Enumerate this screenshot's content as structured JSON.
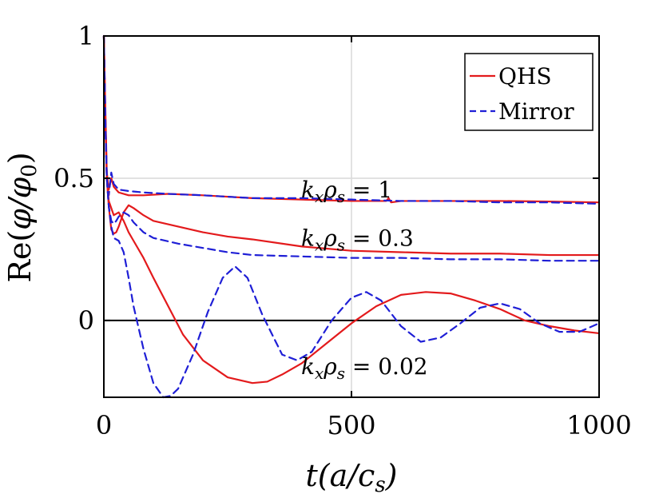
{
  "chart_data": {
    "type": "line",
    "title": "",
    "xlabel": "t(a/c_s)",
    "ylabel": "Re(φ/φ_0)",
    "xlim": [
      0,
      1000
    ],
    "ylim": [
      -0.27,
      1
    ],
    "xticks": [
      0,
      500,
      1000
    ],
    "xtick_labels": [
      "0",
      "500",
      "1000"
    ],
    "yticks": [
      0,
      0.5,
      1
    ],
    "ytick_labels": [
      "0",
      "0.5",
      "1"
    ],
    "grid": true,
    "zero_line": true,
    "legend": {
      "placement": "top-right",
      "entries": [
        {
          "label": "QHS",
          "color": "#e31a1c",
          "style": "solid"
        },
        {
          "label": "Mirror",
          "color": "#1f1fd6",
          "style": "dashed"
        }
      ]
    },
    "annotations": [
      {
        "text": "k_x ρ_s = 1",
        "x": 450,
        "y": 0.46
      },
      {
        "text": "k_x ρ_s = 0.3",
        "x": 450,
        "y": 0.29
      },
      {
        "text": "k_x ρ_s = 0.02",
        "x": 450,
        "y": -0.16
      }
    ],
    "series": [
      {
        "name": "QHS",
        "group": "k_x ρ_s = 1",
        "color": "#e31a1c",
        "style": "solid",
        "x": [
          0,
          3,
          6,
          10,
          15,
          20,
          30,
          50,
          80,
          130,
          200,
          300,
          400,
          500,
          570,
          575,
          580,
          600,
          700,
          800,
          900,
          1000
        ],
        "y": [
          1.0,
          0.75,
          0.52,
          0.46,
          0.5,
          0.47,
          0.45,
          0.44,
          0.44,
          0.445,
          0.44,
          0.43,
          0.425,
          0.42,
          0.42,
          0.43,
          0.415,
          0.42,
          0.42,
          0.42,
          0.418,
          0.415
        ]
      },
      {
        "name": "Mirror",
        "group": "k_x ρ_s = 1",
        "color": "#1f1fd6",
        "style": "dashed",
        "x": [
          0,
          3,
          6,
          10,
          15,
          20,
          30,
          50,
          80,
          130,
          200,
          300,
          400,
          500,
          600,
          700,
          800,
          900,
          1000
        ],
        "y": [
          1.0,
          0.72,
          0.5,
          0.44,
          0.52,
          0.48,
          0.46,
          0.455,
          0.45,
          0.445,
          0.44,
          0.43,
          0.43,
          0.425,
          0.42,
          0.42,
          0.415,
          0.415,
          0.41
        ]
      },
      {
        "name": "QHS",
        "group": "k_x ρ_s = 0.3",
        "color": "#e31a1c",
        "style": "solid",
        "x": [
          0,
          3,
          6,
          10,
          15,
          20,
          25,
          30,
          40,
          50,
          60,
          80,
          100,
          150,
          200,
          250,
          300,
          400,
          500,
          600,
          700,
          800,
          900,
          1000
        ],
        "y": [
          1.0,
          0.72,
          0.5,
          0.4,
          0.32,
          0.305,
          0.31,
          0.33,
          0.38,
          0.405,
          0.395,
          0.37,
          0.35,
          0.33,
          0.31,
          0.295,
          0.285,
          0.26,
          0.245,
          0.24,
          0.235,
          0.235,
          0.23,
          0.23
        ]
      },
      {
        "name": "Mirror",
        "group": "k_x ρ_s = 0.3",
        "color": "#1f1fd6",
        "style": "dashed",
        "x": [
          0,
          3,
          6,
          10,
          15,
          20,
          25,
          30,
          40,
          50,
          60,
          80,
          100,
          150,
          200,
          250,
          300,
          400,
          500,
          600,
          700,
          800,
          900,
          1000
        ],
        "y": [
          1.0,
          0.7,
          0.5,
          0.4,
          0.35,
          0.34,
          0.35,
          0.365,
          0.38,
          0.37,
          0.345,
          0.31,
          0.29,
          0.27,
          0.255,
          0.24,
          0.23,
          0.225,
          0.22,
          0.22,
          0.215,
          0.215,
          0.21,
          0.21
        ]
      },
      {
        "name": "QHS",
        "group": "k_x ρ_s = 0.02",
        "color": "#e31a1c",
        "style": "solid",
        "x": [
          0,
          3,
          6,
          10,
          20,
          30,
          40,
          50,
          60,
          80,
          100,
          130,
          160,
          200,
          250,
          300,
          330,
          360,
          400,
          450,
          500,
          550,
          600,
          650,
          700,
          750,
          800,
          850,
          900,
          950,
          1000
        ],
        "y": [
          1.0,
          0.7,
          0.5,
          0.42,
          0.37,
          0.38,
          0.35,
          0.31,
          0.28,
          0.22,
          0.15,
          0.05,
          -0.05,
          -0.14,
          -0.2,
          -0.22,
          -0.215,
          -0.19,
          -0.15,
          -0.08,
          -0.01,
          0.05,
          0.09,
          0.1,
          0.095,
          0.07,
          0.04,
          0.0,
          -0.02,
          -0.035,
          -0.045
        ]
      },
      {
        "name": "Mirror",
        "group": "k_x ρ_s = 0.02",
        "color": "#1f1fd6",
        "style": "dashed",
        "x": [
          0,
          3,
          6,
          10,
          15,
          20,
          30,
          40,
          50,
          60,
          80,
          100,
          120,
          135,
          150,
          180,
          210,
          240,
          265,
          290,
          320,
          360,
          390,
          420,
          460,
          500,
          530,
          560,
          600,
          640,
          680,
          720,
          760,
          800,
          840,
          880,
          920,
          960,
          1000
        ],
        "y": [
          1.0,
          0.7,
          0.5,
          0.4,
          0.33,
          0.29,
          0.28,
          0.24,
          0.15,
          0.05,
          -0.1,
          -0.22,
          -0.27,
          -0.265,
          -0.24,
          -0.12,
          0.03,
          0.15,
          0.19,
          0.15,
          0.02,
          -0.12,
          -0.14,
          -0.11,
          0.0,
          0.08,
          0.1,
          0.07,
          -0.02,
          -0.075,
          -0.06,
          -0.01,
          0.045,
          0.06,
          0.04,
          -0.01,
          -0.04,
          -0.04,
          -0.01
        ]
      }
    ]
  }
}
